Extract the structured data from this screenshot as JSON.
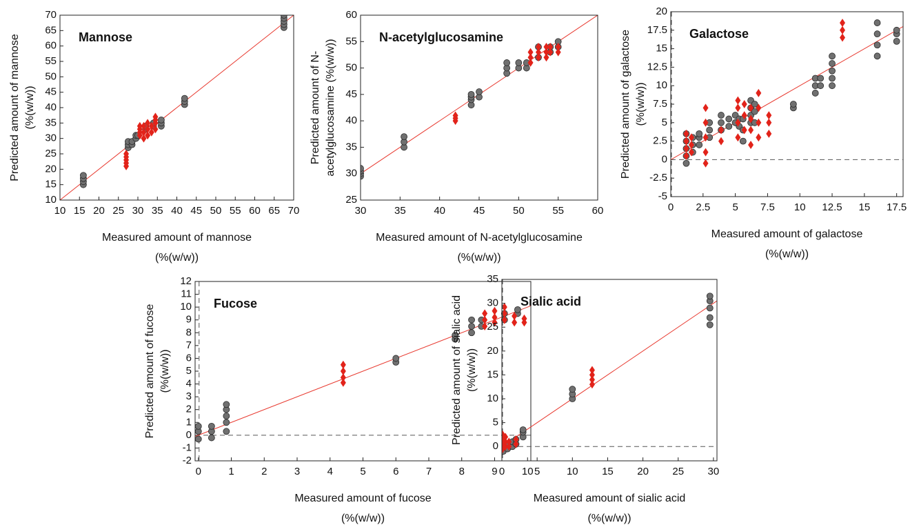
{
  "chart_data": [
    {
      "type": "scatter",
      "title": "Mannose",
      "x_label": [
        "Measured amount of mannose",
        "(%(w/w))"
      ],
      "y_label": [
        "Predicted amount of mannose",
        "(%(w/w))"
      ],
      "xlim": [
        10,
        70
      ],
      "ylim": [
        10,
        70
      ],
      "xticks": [
        10,
        15,
        20,
        25,
        30,
        35,
        40,
        45,
        50,
        55,
        60,
        65,
        70
      ],
      "yticks": [
        10,
        15,
        20,
        25,
        30,
        35,
        40,
        45,
        50,
        55,
        60,
        65,
        70
      ],
      "identity_line": {
        "color": "#e8392f"
      },
      "zero_line": false,
      "series": [
        {
          "color": "#707070",
          "marker": "circle",
          "x": [
            16,
            16,
            16,
            16,
            27.5,
            27.5,
            27.5,
            28.5,
            28.5,
            29.5,
            29.5,
            30,
            32,
            32,
            34,
            34,
            36,
            36,
            36,
            42,
            42,
            42,
            67.5,
            67.5,
            67.5,
            67.5,
            67.5
          ],
          "values": [
            15,
            16,
            17,
            18,
            27,
            28,
            29,
            28,
            29,
            30,
            31,
            31,
            33,
            34,
            34,
            35,
            34,
            35,
            36,
            41,
            42,
            43,
            66,
            67,
            68,
            69,
            70
          ]
        },
        {
          "color": "#e2231a",
          "marker": "diamond",
          "x": [
            27,
            27,
            27,
            27,
            27,
            30.5,
            30.5,
            30.5,
            30.5,
            31.5,
            31.5,
            31.5,
            32.5,
            32.5,
            32.5,
            33.5,
            33.5,
            34.5,
            34.5,
            34.5,
            34.5
          ],
          "values": [
            21,
            22,
            23,
            24,
            25,
            31,
            32,
            33,
            34,
            30,
            32,
            34,
            31,
            33,
            35,
            32,
            34,
            33,
            35,
            36,
            37
          ]
        }
      ]
    },
    {
      "type": "scatter",
      "title": "N-acetylglucosamine",
      "x_label": [
        "Measured amount of N-acetylglucosamine",
        "(%(w/w))"
      ],
      "y_label": [
        "Predicted amount of N-",
        "acetylglucosamine (%(w/w))"
      ],
      "xlim": [
        30,
        60
      ],
      "ylim": [
        25,
        60
      ],
      "xticks": [
        30,
        35,
        40,
        45,
        50,
        55,
        60
      ],
      "yticks": [
        25,
        30,
        35,
        40,
        45,
        50,
        55,
        60
      ],
      "identity_line": {
        "color": "#e8392f"
      },
      "zero_line": false,
      "series": [
        {
          "color": "#707070",
          "marker": "circle",
          "x": [
            30,
            30,
            30,
            30,
            35.5,
            35.5,
            35.5,
            44,
            44,
            44,
            44,
            45,
            45,
            48.5,
            48.5,
            48.5,
            50,
            50,
            51,
            51,
            52.5,
            52.5,
            54,
            54,
            55,
            55
          ],
          "values": [
            29.5,
            30,
            30.5,
            31,
            35,
            36,
            37,
            43,
            44,
            44.5,
            45,
            44.5,
            45.5,
            49,
            50,
            51,
            50,
            51,
            50,
            51,
            52,
            54,
            53,
            54,
            54,
            55
          ]
        },
        {
          "color": "#e2231a",
          "marker": "diamond",
          "x": [
            42,
            42,
            42,
            51.5,
            51.5,
            51.5,
            52.5,
            52.5,
            52.5,
            53.5,
            53.5,
            53.5,
            54,
            54,
            55,
            55
          ],
          "values": [
            40,
            40.5,
            41,
            51,
            52,
            53,
            52,
            53,
            54,
            52,
            53,
            54,
            53,
            54,
            53,
            54
          ]
        }
      ]
    },
    {
      "type": "scatter",
      "title": "Galactose",
      "x_label": [
        "Measured amount of galactose",
        "(%(w/w))"
      ],
      "y_label": [
        "Predicted amount of galactose",
        "(%(w/w))"
      ],
      "xlim": [
        0,
        18
      ],
      "ylim": [
        -5,
        20
      ],
      "xticks": [
        0,
        2.5,
        5,
        7.5,
        10,
        12.5,
        15,
        17.5
      ],
      "yticks": [
        -5,
        -2.5,
        0,
        2.5,
        5,
        7.5,
        10,
        12.5,
        15,
        17.5,
        20
      ],
      "identity_line": {
        "color": "#e8392f"
      },
      "zero_line": true,
      "series": [
        {
          "color": "#707070",
          "marker": "circle",
          "x": [
            1.2,
            1.2,
            1.2,
            1.2,
            1.2,
            1.7,
            1.7,
            1.7,
            2.2,
            2.2,
            2.2,
            3,
            3,
            3,
            3.9,
            3.9,
            3.9,
            4.5,
            4.5,
            5,
            5,
            5.3,
            5.3,
            5.6,
            5.6,
            5.6,
            6.2,
            6.2,
            6.2,
            6.2,
            6.5,
            6.5,
            6.5,
            9.5,
            9.5,
            11.2,
            11.2,
            11.2,
            11.6,
            11.6,
            12.5,
            12.5,
            12.5,
            12.5,
            12.5,
            16,
            16,
            16,
            16,
            17.5,
            17.5,
            17.5
          ],
          "values": [
            -0.5,
            0.5,
            1.5,
            2.5,
            3.5,
            1,
            2,
            3,
            2,
            3,
            3.5,
            3,
            4,
            5,
            4,
            5,
            6,
            4.5,
            5.5,
            5,
            6,
            4.5,
            5.5,
            2.5,
            4,
            5.5,
            5,
            6,
            7,
            8,
            5,
            6.5,
            7.5,
            7,
            7.5,
            9,
            10,
            11,
            10,
            11,
            10,
            11,
            12,
            13,
            14,
            14,
            15.5,
            17,
            18.5,
            16,
            17,
            17.5
          ]
        },
        {
          "color": "#e2231a",
          "marker": "diamond",
          "x": [
            1.2,
            1.2,
            1.2,
            1.2,
            1.6,
            1.6,
            1.6,
            2.7,
            2.7,
            2.7,
            2.7,
            2.7,
            3.9,
            3.9,
            5.2,
            5.2,
            5.2,
            5.2,
            5.7,
            5.7,
            5.7,
            6.2,
            6.2,
            6.2,
            6.2,
            6.8,
            6.8,
            6.8,
            6.8,
            7.6,
            7.6,
            7.6,
            13.3,
            13.3,
            13.3
          ],
          "values": [
            0.5,
            1.5,
            2.5,
            3.5,
            1,
            2,
            3,
            -0.5,
            1,
            3,
            5,
            7,
            2.5,
            4,
            3,
            5,
            7,
            8,
            4,
            6,
            7.5,
            2,
            4,
            5.5,
            7,
            3,
            5,
            7,
            9,
            3.5,
            5,
            6,
            16.5,
            17.5,
            18.5
          ]
        }
      ]
    },
    {
      "type": "scatter",
      "title": "Fucose",
      "x_label": [
        "Measured amount of fucose",
        "(%(w/w))"
      ],
      "y_label": [
        "Predicted amount of fucose",
        "(%(w/w))"
      ],
      "xlim": [
        -0.1,
        10.1
      ],
      "ylim": [
        -2,
        12
      ],
      "xticks": [
        0,
        1,
        2,
        3,
        4,
        5,
        6,
        7,
        8,
        9,
        10
      ],
      "yticks": [
        -2,
        -1,
        0,
        1,
        2,
        3,
        4,
        5,
        6,
        7,
        8,
        9,
        10,
        11,
        12
      ],
      "identity_line": {
        "color": "#e8392f"
      },
      "zero_line": true,
      "series": [
        {
          "color": "#707070",
          "marker": "circle",
          "x": [
            0,
            0,
            0,
            0.4,
            0.4,
            0.4,
            0.85,
            0.85,
            0.85,
            0.85,
            0.85,
            6,
            6,
            7.8,
            7.8,
            8.3,
            8.3,
            8.3,
            8.6,
            8.6,
            9.3,
            9.3,
            9.7,
            9.7
          ],
          "values": [
            -0.3,
            0.3,
            0.7,
            -0.2,
            0.3,
            0.7,
            0.3,
            1,
            1.5,
            2,
            2.4,
            5.7,
            6,
            7.5,
            7.8,
            8,
            8.5,
            9,
            8.5,
            9,
            9,
            9.5,
            9.5,
            9.8
          ]
        },
        {
          "color": "#e2231a",
          "marker": "diamond",
          "x": [
            4.4,
            4.4,
            4.4,
            4.4,
            8.7,
            8.7,
            8.7,
            9,
            9,
            9,
            9.3,
            9.3,
            9.3,
            9.6,
            9.6,
            9.9,
            9.9
          ],
          "values": [
            4.1,
            4.5,
            5,
            5.5,
            8.5,
            9,
            9.5,
            8.8,
            9.2,
            9.7,
            9,
            9.5,
            10,
            8.8,
            9.3,
            8.8,
            9.1
          ]
        }
      ]
    },
    {
      "type": "scatter",
      "title": "Sialic acid",
      "x_label": [
        "Measured amount of sialic acid",
        "(%(w/w))"
      ],
      "y_label": [
        "Predicted amount of sialic acid",
        "(%(w/w))"
      ],
      "xlim": [
        0,
        30.5
      ],
      "ylim": [
        -3,
        35
      ],
      "xticks": [
        0,
        5,
        10,
        15,
        20,
        25,
        30
      ],
      "yticks": [
        0,
        5,
        10,
        15,
        20,
        25,
        30,
        35
      ],
      "identity_line": {
        "color": "#e8392f"
      },
      "zero_line": true,
      "series": [
        {
          "color": "#707070",
          "marker": "circle",
          "x": [
            0.2,
            0.2,
            0.2,
            0.8,
            0.8,
            1.5,
            1.5,
            2,
            2,
            3,
            3,
            3,
            10,
            10,
            10,
            29.5,
            29.5,
            29.5,
            29.5,
            29.5
          ],
          "values": [
            -1,
            0,
            1,
            -0.5,
            0.5,
            0,
            1,
            0.5,
            1.5,
            2,
            3,
            3.5,
            10,
            11,
            12,
            25.5,
            27,
            29,
            30.5,
            31.5
          ]
        },
        {
          "color": "#e2231a",
          "marker": "diamond",
          "x": [
            0.1,
            0.1,
            0.1,
            0.1,
            0.5,
            0.5,
            0.5,
            1,
            1,
            2,
            2,
            12.8,
            12.8,
            12.8,
            12.8
          ],
          "values": [
            -0.5,
            0.5,
            1.5,
            2.5,
            0,
            1,
            2,
            0,
            1,
            0.5,
            1.5,
            13,
            14,
            15,
            16
          ]
        }
      ]
    }
  ]
}
